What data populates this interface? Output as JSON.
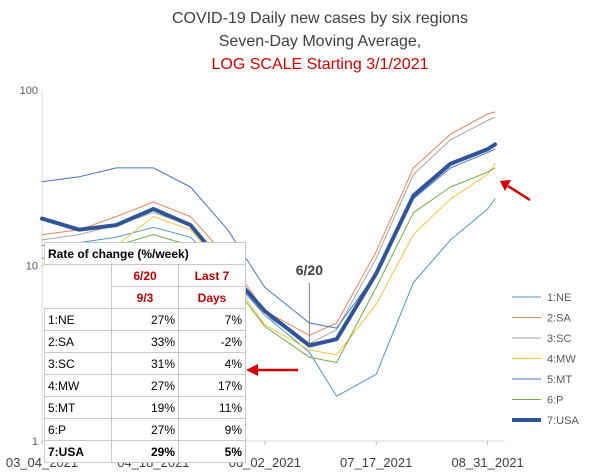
{
  "chart_data": {
    "type": "line",
    "title": "COVID-19 Daily new cases by six regions",
    "subtitle": "Seven-Day Moving Average,",
    "subtitle2": "LOG SCALE Starting 3/1/2021",
    "y_scale": "log",
    "ylim": [
      1,
      100
    ],
    "y_ticks": [
      "100",
      "10",
      "1"
    ],
    "x_ticks": [
      "03_04_2021",
      "04_18_2021",
      "06_02_2021",
      "07_17_2021",
      "08_31_2021"
    ],
    "x": [
      "2021-03-04",
      "2021-03-19",
      "2021-04-03",
      "2021-04-18",
      "2021-05-03",
      "2021-05-18",
      "2021-06-02",
      "2021-06-20",
      "2021-07-01",
      "2021-07-17",
      "2021-08-01",
      "2021-08-16",
      "2021-08-31",
      "2021-09-03"
    ],
    "series": [
      {
        "name": "1:NE",
        "color": "#4e97c7",
        "width": 1,
        "values": [
          13,
          13.5,
          14.5,
          16.5,
          14.5,
          9,
          5.2,
          3.2,
          1.8,
          2.4,
          8,
          14,
          21,
          24
        ]
      },
      {
        "name": "2:SA",
        "color": "#e4845c",
        "width": 1,
        "values": [
          15,
          16,
          19,
          23,
          19,
          11,
          5.5,
          4,
          4.7,
          12,
          36,
          56,
          73,
          75
        ]
      },
      {
        "name": "3:SC",
        "color": "#a5a5a5",
        "width": 1,
        "values": [
          14,
          15,
          17,
          20,
          17,
          10,
          5.2,
          3.6,
          4.3,
          11,
          33,
          52,
          67,
          70
        ]
      },
      {
        "name": "4:MW",
        "color": "#f2c43f",
        "width": 1,
        "values": [
          10,
          10.5,
          13,
          19,
          16,
          9,
          4.6,
          3.3,
          3.1,
          6,
          15,
          24,
          33,
          38
        ]
      },
      {
        "name": "5:MT",
        "color": "#4472c4",
        "width": 1,
        "values": [
          30,
          32,
          36,
          36,
          28,
          16,
          7.5,
          4.7,
          4.4,
          9,
          24,
          36,
          44,
          46
        ]
      },
      {
        "name": "6:P",
        "color": "#70ad47",
        "width": 1,
        "values": [
          11,
          11.5,
          13,
          15,
          13,
          8.5,
          4.5,
          3,
          2.8,
          7.5,
          20,
          28,
          34,
          36
        ]
      },
      {
        "name": "7:USA",
        "color": "#2f5597",
        "width": 4,
        "values": [
          18.5,
          16,
          17,
          21,
          17,
          9.5,
          5.5,
          3.5,
          3.8,
          9,
          25,
          38,
          46,
          49
        ]
      }
    ],
    "annotations": {
      "marker_label": "6/20"
    }
  },
  "rate_table": {
    "title": "Rate of change (%/week)",
    "col1_line1": "6/20",
    "col1_line2": "9/3",
    "col2_line1": "Last 7",
    "col2_line2": "Days",
    "rows": [
      {
        "label": "1:NE",
        "a": "27%",
        "b": "7%"
      },
      {
        "label": "2:SA",
        "a": "33%",
        "b": "-2%"
      },
      {
        "label": "3:SC",
        "a": "31%",
        "b": "4%"
      },
      {
        "label": "4:MW",
        "a": "27%",
        "b": "17%"
      },
      {
        "label": "5:MT",
        "a": "19%",
        "b": "11%"
      },
      {
        "label": "6:P",
        "a": "27%",
        "b": "9%"
      },
      {
        "label": "7:USA",
        "a": "29%",
        "b": "5%"
      }
    ]
  },
  "colors": {
    "annotation_red": "#d40000",
    "title_text": "#404040"
  }
}
